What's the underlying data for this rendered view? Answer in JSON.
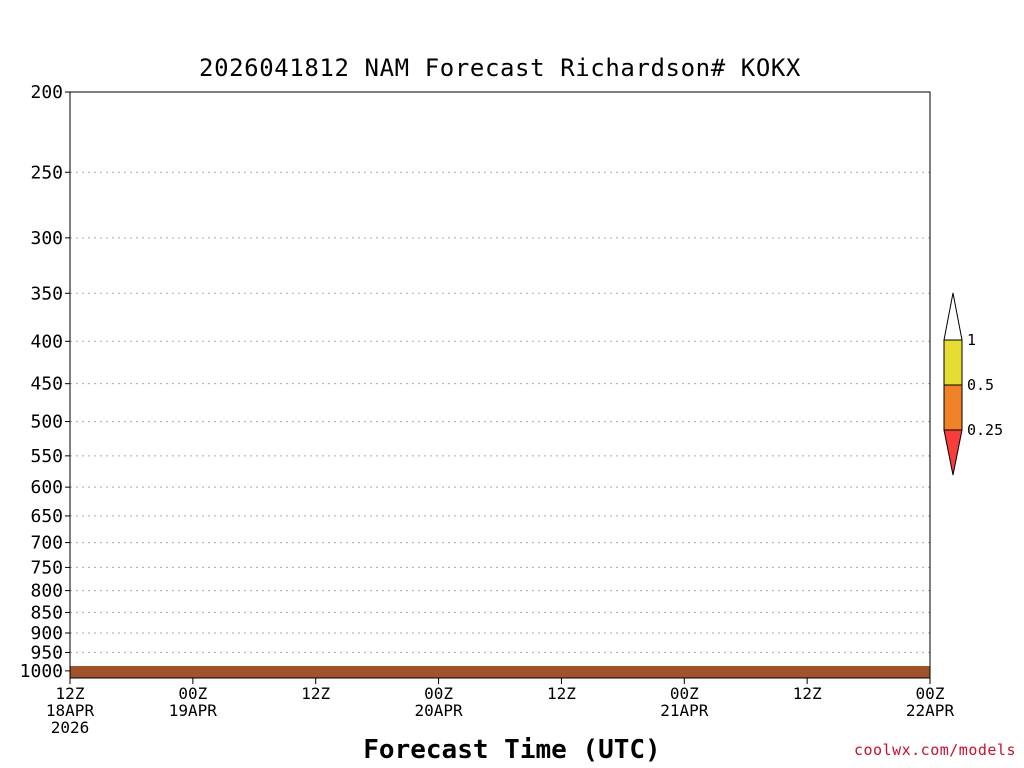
{
  "chart_data": {
    "type": "heatmap",
    "title": "2026041812 NAM Forecast Richardson# KOKX",
    "xlabel": "Forecast Time (UTC)",
    "ylabel": "Pressure (hPa)",
    "ylim": [
      1020,
      200
    ],
    "xlim_hours": [
      0,
      84
    ],
    "y_ticks": [
      200,
      250,
      300,
      350,
      400,
      450,
      500,
      550,
      600,
      650,
      700,
      750,
      800,
      850,
      900,
      950,
      1000
    ],
    "x_ticks": [
      {
        "hour": 0,
        "line1": "12Z",
        "line2": "18APR",
        "line3": "2026"
      },
      {
        "hour": 12,
        "line1": "00Z",
        "line2": "19APR",
        "line3": ""
      },
      {
        "hour": 24,
        "line1": "12Z",
        "line2": "",
        "line3": ""
      },
      {
        "hour": 36,
        "line1": "00Z",
        "line2": "20APR",
        "line3": ""
      },
      {
        "hour": 48,
        "line1": "12Z",
        "line2": "",
        "line3": ""
      },
      {
        "hour": 60,
        "line1": "00Z",
        "line2": "21APR",
        "line3": ""
      },
      {
        "hour": 72,
        "line1": "12Z",
        "line2": "",
        "line3": ""
      },
      {
        "hour": 84,
        "line1": "00Z",
        "line2": "22APR",
        "line3": ""
      }
    ],
    "legend": {
      "placement": "right",
      "levels": [
        "1",
        "0.5",
        "0.25"
      ],
      "bins": [
        {
          "range": "> 1",
          "color": "#ffffff"
        },
        {
          "range": "0.5 - 1",
          "color": "#e6dc32"
        },
        {
          "range": "0.25 - 0.5",
          "color": "#f08228"
        },
        {
          "range": "< 0.25",
          "color": "#fa3c3c"
        }
      ]
    },
    "colors": {
      "yellow": "#e6dc32",
      "orange": "#f08228",
      "red": "#fa3c3c",
      "ground": "#a0522d",
      "grid": "#aaaaaa"
    },
    "regions": [
      {
        "bin": "red",
        "t0": 0,
        "t1": 1,
        "p0": 990,
        "p1": 1005
      },
      {
        "bin": "red",
        "t0": 0,
        "t1": 84,
        "p0": 985,
        "p1": 1008
      },
      {
        "bin": "red",
        "t0": 3,
        "t1": 20,
        "p0": 960,
        "p1": 985
      },
      {
        "bin": "red",
        "t0": 20,
        "t1": 45,
        "p0": 950,
        "p1": 985
      },
      {
        "bin": "red",
        "t0": 30,
        "t1": 44,
        "p0": 880,
        "p1": 950
      },
      {
        "bin": "red",
        "t0": 42,
        "t1": 60,
        "p0": 930,
        "p1": 985
      },
      {
        "bin": "red",
        "t0": 55,
        "t1": 84,
        "p0": 950,
        "p1": 985
      },
      {
        "bin": "orange",
        "t0": 0,
        "t1": 12,
        "p0": 930,
        "p1": 960
      },
      {
        "bin": "orange",
        "t0": 12,
        "t1": 25,
        "p0": 945,
        "p1": 960
      },
      {
        "bin": "orange",
        "t0": 25,
        "t1": 40,
        "p0": 920,
        "p1": 950
      },
      {
        "bin": "yellow",
        "t0": 12,
        "t1": 25,
        "p0": 935,
        "p1": 945
      },
      {
        "bin": "yellow",
        "t0": 2,
        "t1": 11,
        "p0": 840,
        "p1": 865
      },
      {
        "bin": "orange",
        "t0": 5,
        "t1": 9,
        "p0": 855,
        "p1": 862
      },
      {
        "bin": "red",
        "t0": 25,
        "t1": 35,
        "p0": 800,
        "p1": 880
      },
      {
        "bin": "orange",
        "t0": 31,
        "t1": 35,
        "p0": 735,
        "p1": 760
      },
      {
        "bin": "yellow",
        "t0": 32,
        "t1": 36,
        "p0": 700,
        "p1": 740
      },
      {
        "bin": "red",
        "t0": 54,
        "t1": 65,
        "p0": 800,
        "p1": 900
      },
      {
        "bin": "red",
        "t0": 63,
        "t1": 70,
        "p0": 840,
        "p1": 900
      },
      {
        "bin": "yellow",
        "t0": 66,
        "t1": 73,
        "p0": 800,
        "p1": 830
      },
      {
        "bin": "red",
        "t0": 69,
        "t1": 84,
        "p0": 860,
        "p1": 920
      },
      {
        "bin": "yellow",
        "t0": 72,
        "t1": 84,
        "p0": 835,
        "p1": 860
      },
      {
        "bin": "red",
        "t0": 43,
        "t1": 52,
        "p0": 720,
        "p1": 770
      },
      {
        "bin": "red",
        "t0": 46,
        "t1": 52,
        "p0": 690,
        "p1": 720
      },
      {
        "bin": "yellow",
        "t0": 52,
        "t1": 63,
        "p0": 750,
        "p1": 790
      },
      {
        "bin": "orange",
        "t0": 52,
        "t1": 56,
        "p0": 740,
        "p1": 760
      },
      {
        "bin": "orange",
        "t0": 38,
        "t1": 44,
        "p0": 640,
        "p1": 690
      },
      {
        "bin": "orange",
        "t0": 42,
        "t1": 45,
        "p0": 610,
        "p1": 640
      },
      {
        "bin": "yellow",
        "t0": 35,
        "t1": 40,
        "p0": 580,
        "p1": 620
      },
      {
        "bin": "red",
        "t0": 43,
        "t1": 48,
        "p0": 550,
        "p1": 600
      },
      {
        "bin": "red",
        "t0": 44,
        "t1": 48,
        "p0": 520,
        "p1": 550
      },
      {
        "bin": "orange",
        "t0": 47,
        "t1": 53,
        "p0": 470,
        "p1": 560
      },
      {
        "bin": "orange",
        "t0": 50,
        "t1": 55,
        "p0": 420,
        "p1": 500
      },
      {
        "bin": "orange",
        "t0": 53,
        "t1": 57,
        "p0": 385,
        "p1": 450
      },
      {
        "bin": "yellow",
        "t0": 56,
        "t1": 58,
        "p0": 375,
        "p1": 420
      },
      {
        "bin": "yellow",
        "t0": 45,
        "t1": 48,
        "p0": 490,
        "p1": 510
      },
      {
        "bin": "red",
        "t0": 50,
        "t1": 53,
        "p0": 520,
        "p1": 560
      },
      {
        "bin": "red",
        "t0": 70,
        "t1": 72,
        "p0": 420,
        "p1": 460
      },
      {
        "bin": "orange",
        "t0": 70,
        "t1": 72,
        "p0": 460,
        "p1": 540
      },
      {
        "bin": "yellow",
        "t0": 71,
        "t1": 76,
        "p0": 540,
        "p1": 620
      },
      {
        "bin": "yellow",
        "t0": 73,
        "t1": 80,
        "p0": 630,
        "p1": 680
      },
      {
        "bin": "yellow",
        "t0": 79,
        "t1": 84,
        "p0": 700,
        "p1": 780
      },
      {
        "bin": "red",
        "t0": 82,
        "t1": 84,
        "p0": 720,
        "p1": 760
      },
      {
        "bin": "orange",
        "t0": 78,
        "t1": 80,
        "p0": 690,
        "p1": 710
      },
      {
        "bin": "red",
        "t0": 82,
        "t1": 84,
        "p0": 780,
        "p1": 810
      },
      {
        "bin": "yellow",
        "t0": 67,
        "t1": 69,
        "p0": 390,
        "p1": 410
      },
      {
        "bin": "red",
        "t0": 82,
        "t1": 83,
        "p0": 420,
        "p1": 450
      },
      {
        "bin": "yellow",
        "t0": 76,
        "t1": 78,
        "p0": 490,
        "p1": 510
      },
      {
        "bin": "red",
        "t0": 78,
        "t1": 79,
        "p0": 540,
        "p1": 560
      },
      {
        "bin": "orange",
        "t0": 77,
        "t1": 78,
        "p0": 490,
        "p1": 510
      },
      {
        "bin": "yellow",
        "t0": 0,
        "t1": 9,
        "p0": 230,
        "p1": 290
      },
      {
        "bin": "red",
        "t0": 0,
        "t1": 9,
        "p0": 245,
        "p1": 265
      },
      {
        "bin": "red",
        "t0": 5,
        "t1": 9,
        "p0": 270,
        "p1": 300
      },
      {
        "bin": "orange",
        "t0": 3,
        "t1": 6,
        "p0": 285,
        "p1": 300
      },
      {
        "bin": "red",
        "t0": 10,
        "t1": 14,
        "p0": 220,
        "p1": 240
      },
      {
        "bin": "red",
        "t0": 16,
        "t1": 21,
        "p0": 220,
        "p1": 270
      },
      {
        "bin": "red",
        "t0": 17,
        "t1": 20,
        "p0": 200,
        "p1": 215
      },
      {
        "bin": "yellow",
        "t0": 20,
        "t1": 22,
        "p0": 205,
        "p1": 270
      },
      {
        "bin": "red",
        "t0": 25,
        "t1": 29,
        "p0": 225,
        "p1": 280
      },
      {
        "bin": "yellow",
        "t0": 28,
        "t1": 31,
        "p0": 210,
        "p1": 280
      },
      {
        "bin": "red",
        "t0": 29,
        "t1": 35,
        "p0": 215,
        "p1": 245
      },
      {
        "bin": "red",
        "t0": 32,
        "t1": 35,
        "p0": 330,
        "p1": 350
      },
      {
        "bin": "orange",
        "t0": 36,
        "t1": 37,
        "p0": 200,
        "p1": 210
      },
      {
        "bin": "yellow",
        "t0": 37,
        "t1": 40,
        "p0": 200,
        "p1": 215
      },
      {
        "bin": "orange",
        "t0": 37,
        "t1": 39,
        "p0": 230,
        "p1": 245
      },
      {
        "bin": "yellow",
        "t0": 46,
        "t1": 51,
        "p0": 240,
        "p1": 270
      },
      {
        "bin": "orange",
        "t0": 47,
        "t1": 50,
        "p0": 245,
        "p1": 260
      },
      {
        "bin": "yellow",
        "t0": 48,
        "t1": 55,
        "p0": 270,
        "p1": 305
      },
      {
        "bin": "yellow",
        "t0": 2,
        "t1": 4,
        "p0": 365,
        "p1": 385
      },
      {
        "bin": "orange",
        "t0": 33,
        "t1": 35,
        "p0": 420,
        "p1": 450
      },
      {
        "bin": "yellow",
        "t0": 31,
        "t1": 34,
        "p0": 330,
        "p1": 350
      },
      {
        "bin": "yellow",
        "t0": 41,
        "t1": 42,
        "p0": 320,
        "p1": 380
      }
    ]
  },
  "credit": "coolwx.com/models"
}
